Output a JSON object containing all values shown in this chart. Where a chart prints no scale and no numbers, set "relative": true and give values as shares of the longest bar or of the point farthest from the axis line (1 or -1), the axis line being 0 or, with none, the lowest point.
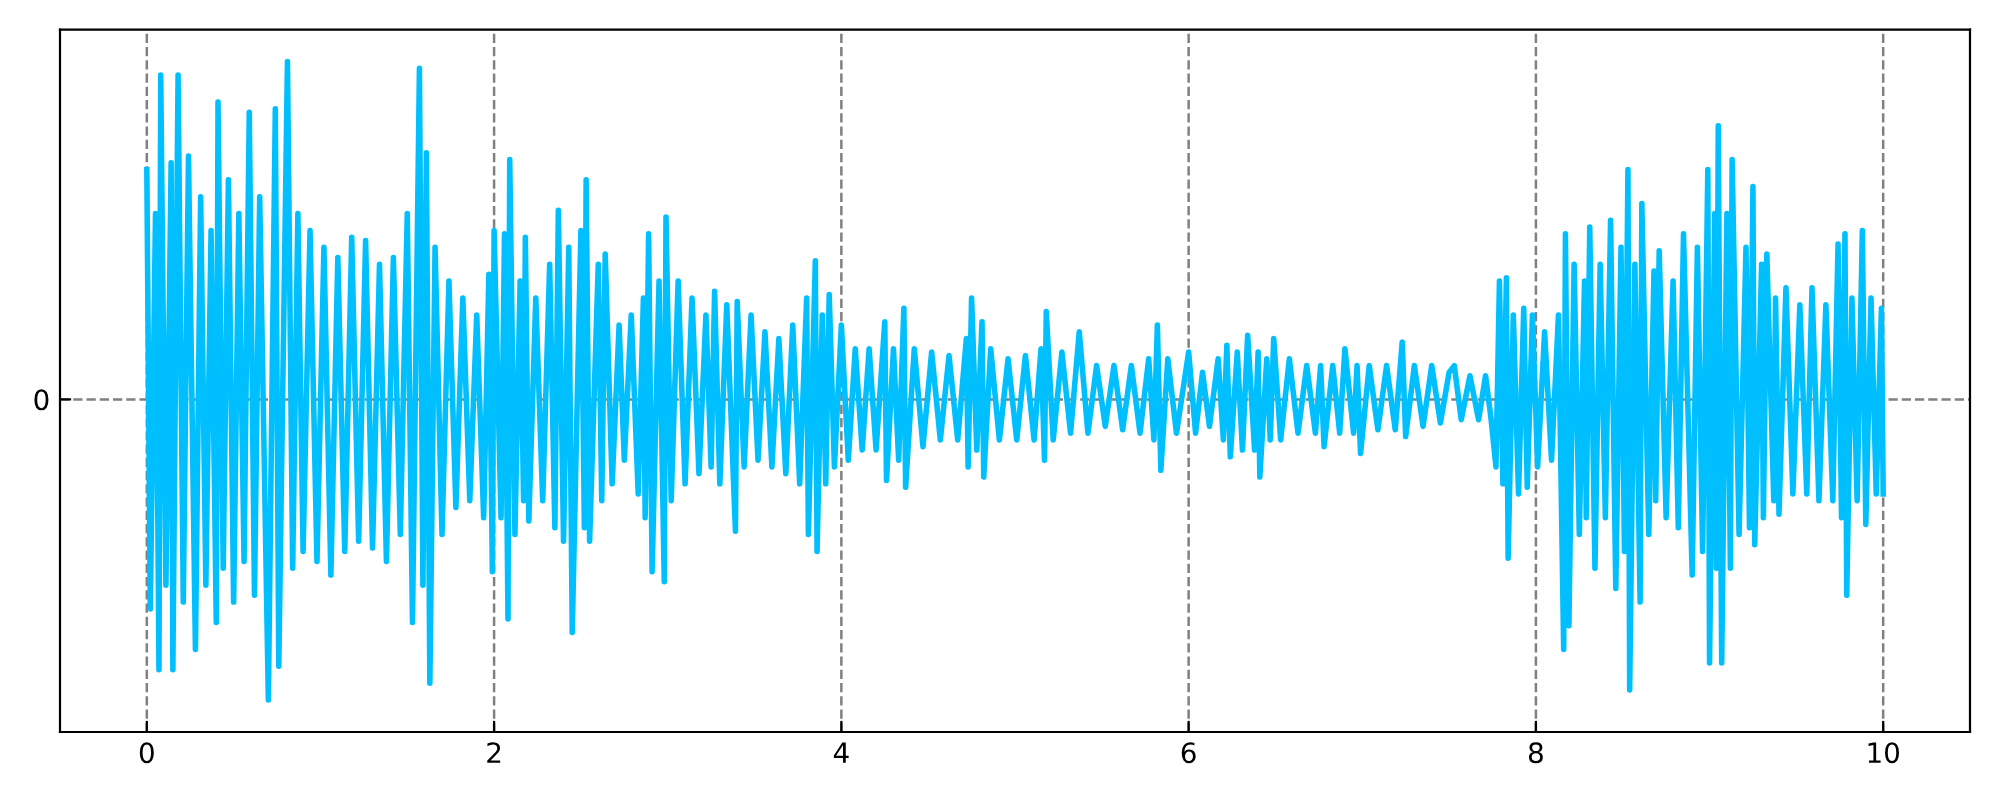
{
  "chart_data": {
    "type": "line",
    "relative": true,
    "xlim": [
      -0.5,
      10.5
    ],
    "xticks": [
      0,
      2,
      4,
      6,
      8,
      10
    ],
    "grid": "x",
    "ref_lines": [
      {
        "axis": "y",
        "value": 0,
        "label": "0",
        "color": "#808080",
        "line_style": "dashed"
      }
    ],
    "x": [
      0.0,
      0.02,
      0.05,
      0.07,
      0.08,
      0.11,
      0.14,
      0.15,
      0.18,
      0.21,
      0.24,
      0.28,
      0.31,
      0.34,
      0.37,
      0.4,
      0.41,
      0.44,
      0.47,
      0.5,
      0.53,
      0.56,
      0.59,
      0.62,
      0.65,
      0.7,
      0.74,
      0.76,
      0.81,
      0.84,
      0.87,
      0.9,
      0.94,
      0.98,
      1.02,
      1.06,
      1.1,
      1.14,
      1.18,
      1.22,
      1.26,
      1.3,
      1.34,
      1.38,
      1.42,
      1.46,
      1.5,
      1.53,
      1.57,
      1.59,
      1.61,
      1.63,
      1.66,
      1.7,
      1.74,
      1.78,
      1.82,
      1.86,
      1.9,
      1.94,
      1.97,
      1.99,
      2.0,
      2.04,
      2.06,
      2.08,
      2.09,
      2.12,
      2.15,
      2.17,
      2.18,
      2.2,
      2.24,
      2.28,
      2.32,
      2.35,
      2.37,
      2.4,
      2.43,
      2.45,
      2.5,
      2.52,
      2.53,
      2.55,
      2.6,
      2.62,
      2.64,
      2.68,
      2.72,
      2.75,
      2.79,
      2.83,
      2.86,
      2.87,
      2.89,
      2.91,
      2.95,
      2.98,
      2.99,
      3.02,
      3.06,
      3.1,
      3.14,
      3.18,
      3.22,
      3.25,
      3.27,
      3.3,
      3.34,
      3.39,
      3.4,
      3.44,
      3.48,
      3.52,
      3.56,
      3.6,
      3.64,
      3.68,
      3.72,
      3.76,
      3.8,
      3.81,
      3.85,
      3.86,
      3.89,
      3.91,
      3.93,
      3.96,
      4.0,
      4.04,
      4.08,
      4.12,
      4.16,
      4.2,
      4.25,
      4.26,
      4.3,
      4.33,
      4.36,
      4.37,
      4.42,
      4.47,
      4.52,
      4.57,
      4.62,
      4.67,
      4.72,
      4.73,
      4.75,
      4.78,
      4.81,
      4.82,
      4.86,
      4.91,
      4.96,
      5.01,
      5.06,
      5.11,
      5.15,
      5.17,
      5.18,
      5.22,
      5.27,
      5.32,
      5.37,
      5.42,
      5.47,
      5.52,
      5.57,
      5.62,
      5.67,
      5.72,
      5.77,
      5.8,
      5.82,
      5.84,
      5.88,
      5.93,
      6.0,
      6.04,
      6.08,
      6.12,
      6.17,
      6.2,
      6.22,
      6.24,
      6.28,
      6.31,
      6.34,
      6.38,
      6.4,
      6.41,
      6.45,
      6.47,
      6.49,
      6.53,
      6.58,
      6.63,
      6.68,
      6.73,
      6.76,
      6.78,
      6.83,
      6.87,
      6.9,
      6.95,
      6.97,
      6.99,
      7.04,
      7.09,
      7.14,
      7.19,
      7.23,
      7.25,
      7.3,
      7.35,
      7.4,
      7.45,
      7.5,
      7.53,
      7.57,
      7.62,
      7.67,
      7.71,
      7.74,
      7.77,
      7.79,
      7.81,
      7.83,
      7.84,
      7.87,
      7.9,
      7.93,
      7.95,
      7.98,
      8.01,
      8.05,
      8.09,
      8.13,
      8.16,
      8.17,
      8.19,
      8.22,
      8.25,
      8.28,
      8.29,
      8.31,
      8.34,
      8.37,
      8.4,
      8.43,
      8.46,
      8.49,
      8.51,
      8.53,
      8.54,
      8.57,
      8.6,
      8.61,
      8.65,
      8.68,
      8.69,
      8.71,
      8.75,
      8.79,
      8.82,
      8.85,
      8.9,
      8.93,
      8.96,
      8.99,
      9.0,
      9.03,
      9.04,
      9.05,
      9.07,
      9.1,
      9.12,
      9.13,
      9.17,
      9.21,
      9.23,
      9.25,
      9.26,
      9.3,
      9.31,
      9.33,
      9.37,
      9.38,
      9.4,
      9.44,
      9.48,
      9.52,
      9.56,
      9.59,
      9.63,
      9.67,
      9.71,
      9.74,
      9.76,
      9.78,
      9.79,
      9.82,
      9.85,
      9.88,
      9.9,
      9.93,
      9.96,
      9.99,
      10.0
    ],
    "series": [
      {
        "color": "#00bfff",
        "values": [
          0.68,
          -0.62,
          0.55,
          -0.8,
          0.96,
          -0.55,
          0.7,
          -0.8,
          0.96,
          -0.6,
          0.72,
          -0.74,
          0.6,
          -0.55,
          0.5,
          -0.66,
          0.88,
          -0.5,
          0.65,
          -0.6,
          0.55,
          -0.48,
          0.85,
          -0.58,
          0.6,
          -0.89,
          0.86,
          -0.79,
          1.0,
          -0.5,
          0.55,
          -0.45,
          0.5,
          -0.48,
          0.45,
          -0.52,
          0.42,
          -0.45,
          0.48,
          -0.42,
          0.47,
          -0.44,
          0.4,
          -0.48,
          0.42,
          -0.4,
          0.55,
          -0.66,
          0.98,
          -0.55,
          0.73,
          -0.84,
          0.45,
          -0.4,
          0.35,
          -0.32,
          0.3,
          -0.3,
          0.25,
          -0.35,
          0.37,
          -0.51,
          0.5,
          -0.35,
          0.49,
          -0.65,
          0.71,
          -0.4,
          0.35,
          -0.3,
          0.48,
          -0.36,
          0.3,
          -0.3,
          0.4,
          -0.38,
          0.56,
          -0.42,
          0.45,
          -0.69,
          0.5,
          -0.38,
          0.65,
          -0.42,
          0.4,
          -0.3,
          0.43,
          -0.25,
          0.22,
          -0.18,
          0.25,
          -0.28,
          0.3,
          -0.35,
          0.49,
          -0.51,
          0.35,
          -0.54,
          0.54,
          -0.3,
          0.35,
          -0.25,
          0.3,
          -0.22,
          0.25,
          -0.2,
          0.32,
          -0.25,
          0.28,
          -0.39,
          0.29,
          -0.2,
          0.25,
          -0.18,
          0.2,
          -0.2,
          0.18,
          -0.22,
          0.22,
          -0.25,
          0.3,
          -0.4,
          0.41,
          -0.45,
          0.25,
          -0.25,
          0.31,
          -0.2,
          0.22,
          -0.18,
          0.15,
          -0.15,
          0.15,
          -0.15,
          0.23,
          -0.24,
          0.15,
          -0.18,
          0.27,
          -0.26,
          0.15,
          -0.14,
          0.14,
          -0.12,
          0.13,
          -0.12,
          0.18,
          -0.2,
          0.3,
          -0.15,
          0.23,
          -0.23,
          0.15,
          -0.12,
          0.12,
          -0.12,
          0.13,
          -0.12,
          0.15,
          -0.18,
          0.26,
          -0.12,
          0.14,
          -0.1,
          0.2,
          -0.1,
          0.1,
          -0.08,
          0.1,
          -0.09,
          0.1,
          -0.1,
          0.12,
          -0.12,
          0.22,
          -0.21,
          0.12,
          -0.1,
          0.14,
          -0.1,
          0.08,
          -0.08,
          0.12,
          -0.12,
          0.16,
          -0.17,
          0.14,
          -0.15,
          0.19,
          -0.15,
          0.14,
          -0.23,
          0.12,
          -0.12,
          0.18,
          -0.12,
          0.12,
          -0.1,
          0.1,
          -0.1,
          0.1,
          -0.14,
          0.1,
          -0.1,
          0.15,
          -0.1,
          0.1,
          -0.16,
          0.1,
          -0.09,
          0.1,
          -0.09,
          0.17,
          -0.11,
          0.1,
          -0.08,
          0.1,
          -0.07,
          0.08,
          0.1,
          -0.06,
          0.07,
          -0.06,
          0.07,
          -0.05,
          -0.2,
          0.35,
          -0.25,
          0.36,
          -0.47,
          0.25,
          -0.28,
          0.27,
          -0.26,
          0.25,
          -0.2,
          0.2,
          -0.18,
          0.25,
          -0.74,
          0.49,
          -0.67,
          0.4,
          -0.4,
          0.35,
          -0.35,
          0.51,
          -0.5,
          0.4,
          -0.35,
          0.53,
          -0.56,
          0.45,
          -0.45,
          0.68,
          -0.86,
          0.4,
          -0.6,
          0.58,
          -0.4,
          0.38,
          -0.3,
          0.44,
          -0.35,
          0.35,
          -0.38,
          0.49,
          -0.52,
          0.45,
          -0.45,
          0.68,
          -0.78,
          0.55,
          -0.5,
          0.81,
          -0.78,
          0.55,
          -0.5,
          0.71,
          -0.4,
          0.45,
          -0.38,
          0.63,
          -0.43,
          0.4,
          -0.35,
          0.43,
          -0.3,
          0.3,
          -0.34,
          0.33,
          -0.28,
          0.28,
          -0.28,
          0.33,
          -0.3,
          0.28,
          -0.3,
          0.46,
          -0.35,
          0.49,
          -0.58,
          0.3,
          -0.3,
          0.5,
          -0.37,
          0.3,
          -0.28,
          0.27,
          -0.28
        ]
      }
    ]
  }
}
